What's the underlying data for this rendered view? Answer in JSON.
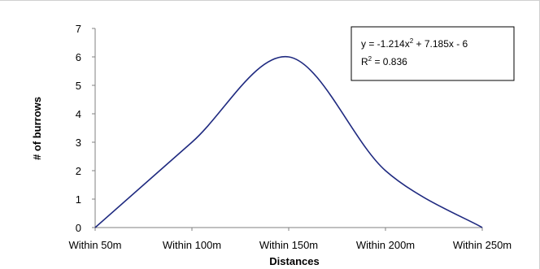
{
  "chart_data": {
    "type": "line",
    "categories": [
      "Within 50m",
      "Within 100m",
      "Within 150m",
      "Within 200m",
      "Within 250m"
    ],
    "series": [
      {
        "values": [
          0,
          3,
          6,
          2,
          0
        ],
        "color": "#1f2a80"
      }
    ],
    "title": "",
    "xlabel": "Distances",
    "ylabel": "# of burrows",
    "ylim": [
      0,
      7
    ],
    "yticks": [
      0,
      1,
      2,
      3,
      4,
      5,
      6,
      7
    ],
    "grid": false,
    "smooth": true,
    "annotation": {
      "equation_prefix": "y = -1.214x",
      "equation_exponent": "2",
      "equation_suffix": " + 7.185x - 6",
      "r2_prefix": "R",
      "r2_exponent": "2",
      "r2_suffix": " = 0.836"
    }
  }
}
